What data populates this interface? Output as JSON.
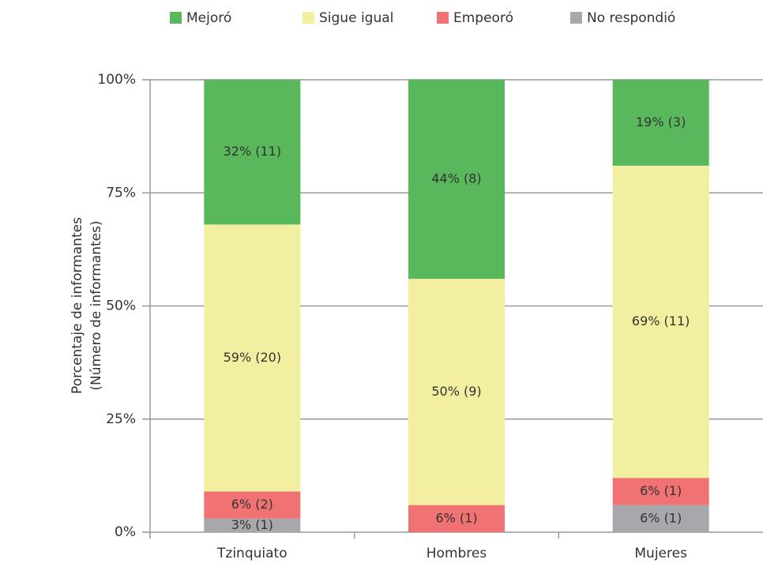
{
  "chart_data": {
    "type": "stacked_bar",
    "y_label": [
      "Porcentaje de informantes",
      "(Número de informantes)"
    ],
    "categories": [
      "Tzinquiato",
      "Hombres",
      "Mujeres"
    ],
    "series": [
      {
        "name": "Mejoró",
        "color": "#58b85b",
        "values": [
          32,
          44,
          19
        ],
        "value_labels": [
          "32% (11)",
          "44% (8)",
          "19% (3)"
        ]
      },
      {
        "name": "Sigue igual",
        "color": "#f2f0a0",
        "values": [
          59,
          50,
          69
        ],
        "value_labels": [
          "59% (20)",
          "50% (9)",
          "69% (11)"
        ]
      },
      {
        "name": "Empeoró",
        "color": "#f07272",
        "values": [
          6,
          6,
          6
        ],
        "value_labels": [
          "6% (2)",
          "6% (1)",
          "6% (1)"
        ]
      },
      {
        "name": "No respondió",
        "color": "#a7a8ab",
        "values": [
          3,
          0,
          6
        ],
        "value_labels": [
          "3% (1)",
          null,
          "6% (1)"
        ]
      }
    ],
    "ylim": [
      0,
      100
    ],
    "yticks": [
      {
        "value": 0,
        "label": "0%"
      },
      {
        "value": 25,
        "label": "25%"
      },
      {
        "value": 50,
        "label": "50%"
      },
      {
        "value": 75,
        "label": "75%"
      },
      {
        "value": 100,
        "label": "100%"
      }
    ],
    "grid": true,
    "legend": "top"
  }
}
